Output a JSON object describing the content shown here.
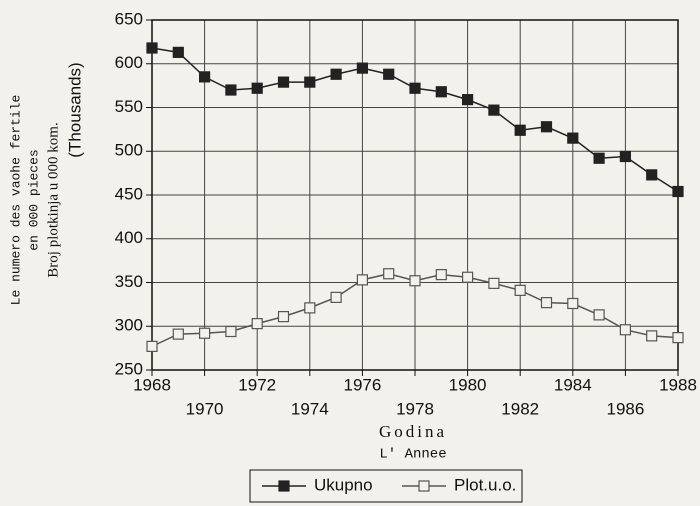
{
  "chart_data": {
    "type": "line",
    "y_axis_labels": [
      "Le numero des vaohe fertile",
      "en 000 pieces",
      "Broj plotkinja u 000 kom.",
      "(Thousands)"
    ],
    "x_axis_labels": [
      "Godina",
      "L' Annee"
    ],
    "x": [
      1968,
      1969,
      1970,
      1971,
      1972,
      1973,
      1974,
      1975,
      1976,
      1977,
      1978,
      1979,
      1980,
      1981,
      1982,
      1983,
      1984,
      1985,
      1986,
      1987,
      1988
    ],
    "series": [
      {
        "name": "Ukupno",
        "color": "#222222",
        "marker": "filled-square",
        "values": [
          618,
          613,
          585,
          570,
          572,
          579,
          579,
          588,
          595,
          588,
          572,
          568,
          559,
          547,
          524,
          528,
          515,
          492,
          494,
          473,
          454
        ]
      },
      {
        "name": "Plot.u.o.",
        "color": "#555555",
        "marker": "open-square",
        "values": [
          277,
          291,
          292,
          294,
          303,
          311,
          321,
          333,
          353,
          360,
          352,
          359,
          356,
          349,
          341,
          327,
          326,
          313,
          296,
          289,
          287
        ]
      }
    ],
    "xlim": [
      1968,
      1988
    ],
    "xticks": [
      1968,
      1970,
      1972,
      1974,
      1976,
      1978,
      1980,
      1982,
      1984,
      1986,
      1988
    ],
    "ylim": [
      250,
      650
    ],
    "yticks": [
      250,
      300,
      350,
      400,
      450,
      500,
      550,
      600,
      650
    ],
    "grid": true,
    "legend": "bottom"
  }
}
